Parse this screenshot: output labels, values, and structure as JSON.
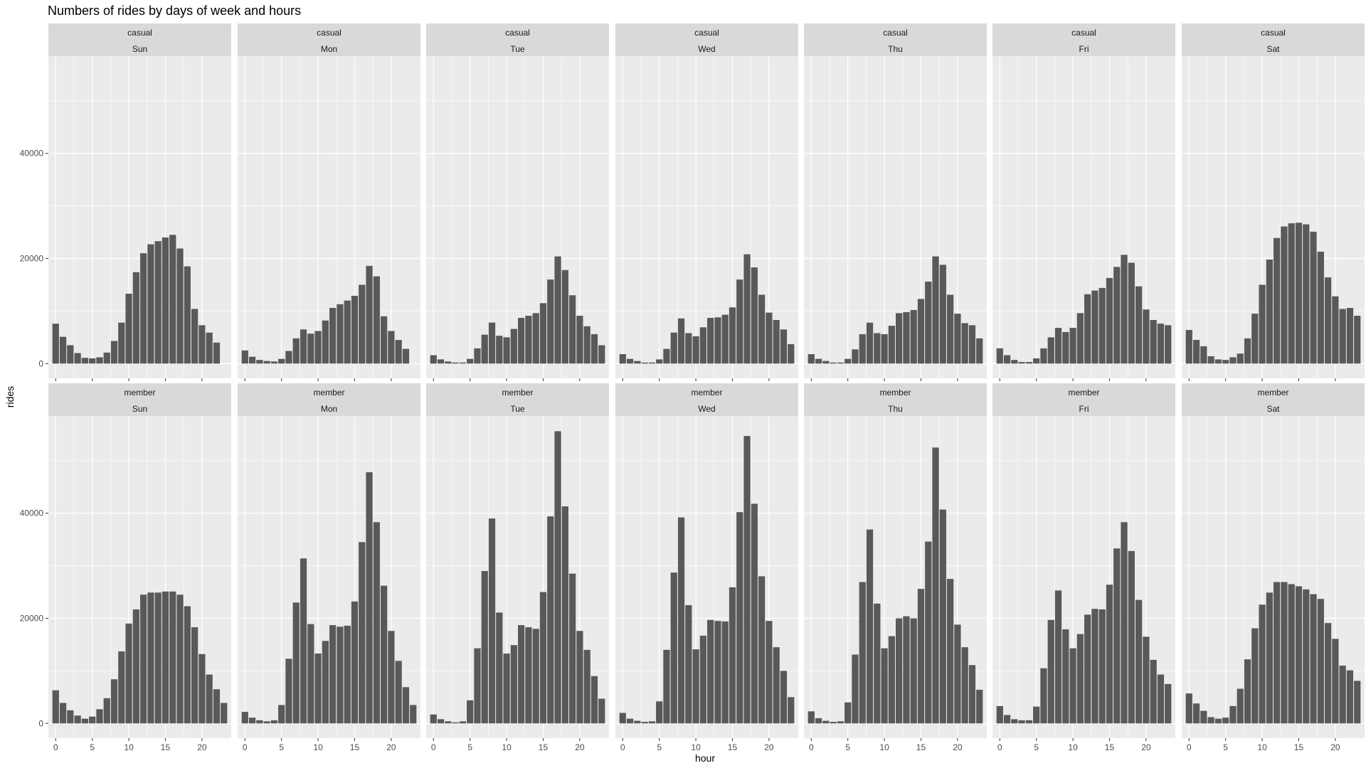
{
  "chart_data": {
    "type": "bar",
    "title": "Numbers of rides by days of week and hours",
    "xlabel": "hour",
    "ylabel": "rides",
    "x": [
      0,
      1,
      2,
      3,
      4,
      5,
      6,
      7,
      8,
      9,
      10,
      11,
      12,
      13,
      14,
      15,
      16,
      17,
      18,
      19,
      20,
      21,
      22,
      23
    ],
    "xticks": [
      0,
      5,
      10,
      15,
      20
    ],
    "yticks": [
      0,
      20000,
      40000
    ],
    "xlim": [
      -1,
      24
    ],
    "ylim": [
      -2800,
      58500
    ],
    "grid": true,
    "bar_color": "#595959",
    "panel_background": "#ebebeb",
    "strip_background": "#d9d9d9",
    "days": [
      "Sun",
      "Mon",
      "Tue",
      "Wed",
      "Thu",
      "Fri",
      "Sat"
    ],
    "groups": [
      {
        "label": "casual",
        "panels": [
          {
            "day": "Sun",
            "values": [
              7600,
              5100,
              3500,
              2000,
              1100,
              1000,
              1200,
              2100,
              4300,
              7800,
              13300,
              17400,
              21000,
              22700,
              23300,
              24000,
              24500,
              21900,
              18500,
              10400,
              7300,
              5900,
              4000,
              0
            ]
          },
          {
            "day": "Mon",
            "values": [
              2500,
              1300,
              700,
              500,
              400,
              900,
              2400,
              4800,
              6500,
              5700,
              6200,
              8200,
              10600,
              11300,
              12000,
              12900,
              15000,
              18600,
              16600,
              9000,
              6200,
              4500,
              2800,
              0
            ]
          },
          {
            "day": "Tue",
            "values": [
              1600,
              800,
              400,
              200,
              200,
              900,
              2900,
              5500,
              7800,
              5300,
              5000,
              6600,
              8700,
              9100,
              9600,
              11500,
              16000,
              20400,
              17800,
              13000,
              9100,
              7100,
              5600,
              3500
            ]
          },
          {
            "day": "Wed",
            "values": [
              1800,
              900,
              500,
              200,
              200,
              800,
              2800,
              5900,
              8600,
              5800,
              5200,
              6900,
              8700,
              8800,
              9300,
              10700,
              16000,
              20800,
              18300,
              13100,
              9700,
              8300,
              6500,
              3700
            ]
          },
          {
            "day": "Thu",
            "values": [
              1800,
              900,
              500,
              200,
              200,
              900,
              2700,
              5600,
              7800,
              5800,
              5600,
              7200,
              9600,
              9800,
              10200,
              12300,
              15600,
              20400,
              18800,
              13100,
              9500,
              7700,
              7300,
              4800
            ]
          },
          {
            "day": "Fri",
            "values": [
              2900,
              1600,
              700,
              300,
              300,
              1000,
              2900,
              5000,
              6800,
              6000,
              6800,
              9600,
              13200,
              13900,
              14400,
              16300,
              18400,
              20700,
              19200,
              14700,
              10300,
              8300,
              7600,
              7300
            ]
          },
          {
            "day": "Sat",
            "values": [
              6400,
              4500,
              3300,
              1400,
              800,
              700,
              1200,
              1900,
              4800,
              9500,
              15000,
              19800,
              23900,
              26100,
              26700,
              26800,
              26500,
              25100,
              21300,
              16400,
              12800,
              10400,
              10600,
              9100
            ]
          }
        ]
      },
      {
        "label": "member",
        "panels": [
          {
            "day": "Sun",
            "values": [
              6300,
              3900,
              2500,
              1500,
              900,
              1300,
              2700,
              4800,
              8400,
              13700,
              19000,
              21700,
              24500,
              24900,
              24900,
              25100,
              25100,
              24500,
              22300,
              18300,
              13200,
              9300,
              6500,
              3900
            ]
          },
          {
            "day": "Mon",
            "values": [
              2200,
              1100,
              600,
              400,
              600,
              3500,
              12300,
              23000,
              31400,
              18900,
              13300,
              15700,
              18700,
              18400,
              18600,
              23200,
              34500,
              47800,
              38300,
              26200,
              17600,
              11900,
              6900,
              3500
            ]
          },
          {
            "day": "Tue",
            "values": [
              1700,
              800,
              400,
              200,
              400,
              4400,
              14300,
              29000,
              39000,
              21100,
              13300,
              14900,
              18700,
              18300,
              18000,
              25000,
              39400,
              55600,
              41300,
              28500,
              17600,
              14000,
              9000,
              4700
            ]
          },
          {
            "day": "Wed",
            "values": [
              2000,
              900,
              500,
              300,
              400,
              4200,
              14000,
              28700,
              39200,
              22500,
              14100,
              16700,
              19700,
              19500,
              19400,
              25900,
              40200,
              54700,
              41800,
              28000,
              19500,
              14500,
              10000,
              5000
            ]
          },
          {
            "day": "Thu",
            "values": [
              2300,
              1000,
              500,
              300,
              400,
              4000,
              13100,
              26900,
              36900,
              22800,
              14300,
              16600,
              20000,
              20400,
              20000,
              25600,
              34600,
              52500,
              40700,
              27500,
              18800,
              14500,
              11100,
              6400
            ]
          },
          {
            "day": "Fri",
            "values": [
              3300,
              1600,
              800,
              600,
              600,
              3200,
              10500,
              19700,
              25300,
              17900,
              14300,
              17000,
              20700,
              21800,
              21700,
              26400,
              33300,
              38300,
              32800,
              23500,
              16500,
              12100,
              9300,
              7500
            ]
          },
          {
            "day": "Sat",
            "values": [
              5700,
              3800,
              2400,
              1200,
              900,
              1100,
              3300,
              6600,
              12200,
              18100,
              22600,
              24900,
              26900,
              26900,
              26500,
              26100,
              25500,
              24600,
              23700,
              19100,
              16100,
              11000,
              10100,
              8100
            ]
          }
        ]
      }
    ]
  }
}
